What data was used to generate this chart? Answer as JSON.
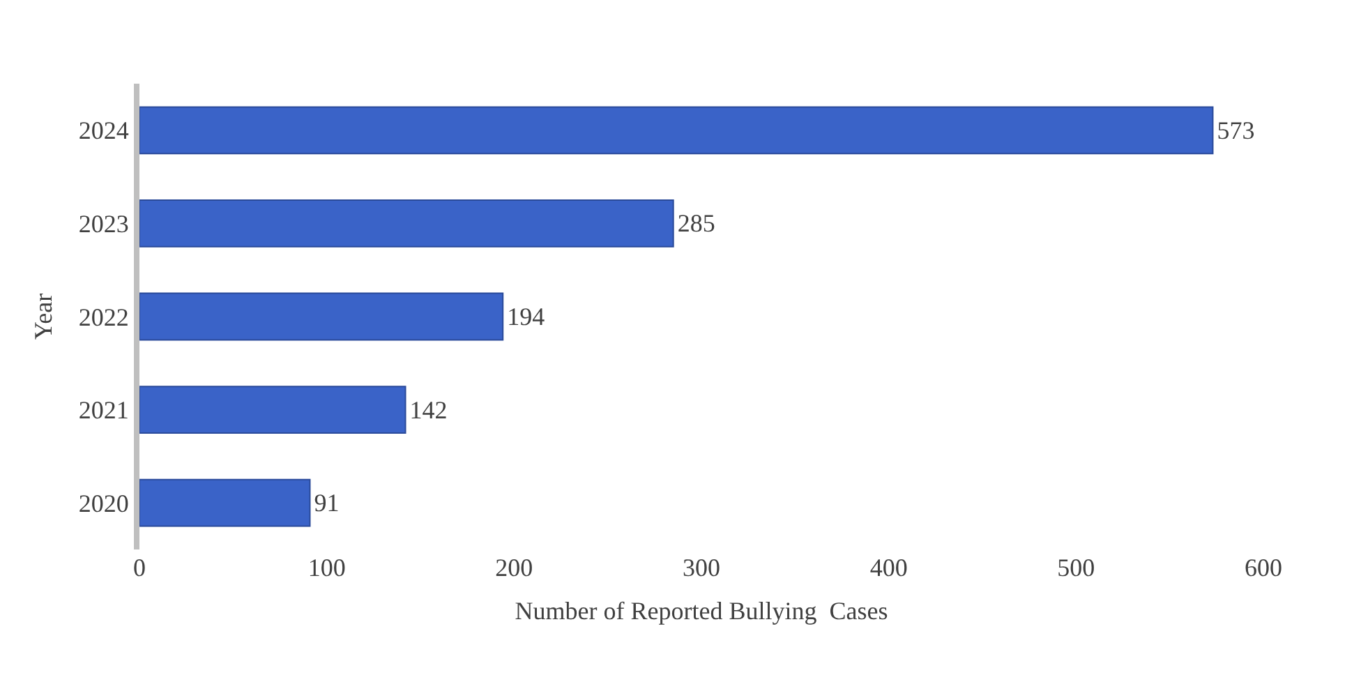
{
  "chart_data": {
    "type": "bar",
    "orientation": "horizontal",
    "categories": [
      "2024",
      "2023",
      "2022",
      "2021",
      "2020"
    ],
    "values": [
      573,
      285,
      194,
      142,
      91
    ],
    "color": "#3a63c8",
    "xlim": [
      0,
      600
    ],
    "xticks": [
      0,
      100,
      200,
      300,
      400,
      500,
      600
    ],
    "xlabel": "Number of Reported Bullying  Cases",
    "ylabel": "Year",
    "data_labels": true
  }
}
